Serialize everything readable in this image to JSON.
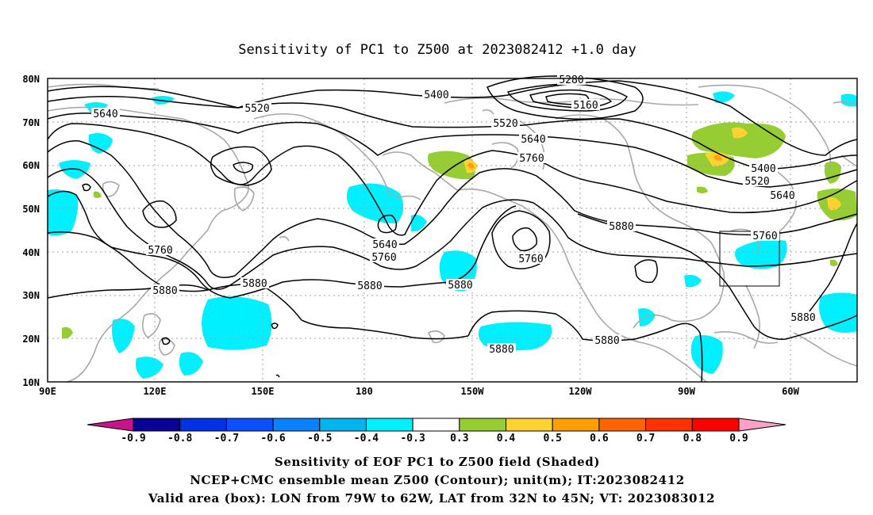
{
  "title": "Sensitivity of PC1 to Z500 at 2023082412 +1.0 day",
  "map": {
    "lat_labels": [
      "80N",
      "70N",
      "60N",
      "50N",
      "40N",
      "30N",
      "20N",
      "10N"
    ],
    "lon_labels": [
      "90E",
      "120E",
      "150E",
      "180",
      "150W",
      "120W",
      "90W",
      "60W"
    ],
    "contour_labels": [
      {
        "text": "5520"
      },
      {
        "text": "5640"
      },
      {
        "text": "5400"
      },
      {
        "text": "5280"
      },
      {
        "text": "5160"
      },
      {
        "text": "5520"
      },
      {
        "text": "5640"
      },
      {
        "text": "5760"
      },
      {
        "text": "5400"
      },
      {
        "text": "5520"
      },
      {
        "text": "5640"
      },
      {
        "text": "5760"
      },
      {
        "text": "5640"
      },
      {
        "text": "5760"
      },
      {
        "text": "5760"
      },
      {
        "text": "5760"
      },
      {
        "text": "5880"
      },
      {
        "text": "5880"
      },
      {
        "text": "5880"
      },
      {
        "text": "5880"
      },
      {
        "text": "5880"
      },
      {
        "text": "5880"
      },
      {
        "text": "5880"
      },
      {
        "text": "5880"
      }
    ]
  },
  "colorbar": {
    "labels": [
      "-0.9",
      "-0.8",
      "-0.7",
      "-0.6",
      "-0.5",
      "-0.4",
      "-0.3",
      "0.3",
      "0.4",
      "0.5",
      "0.6",
      "0.7",
      "0.8",
      "0.9"
    ],
    "colors": [
      "#0a0096",
      "#0032e6",
      "#0a50ff",
      "#0a82ff",
      "#00b4f0",
      "#00f0ff",
      "#ffffff",
      "#96cd32",
      "#ffd232",
      "#ffa000",
      "#ff6400",
      "#ff3200",
      "#ff0000"
    ],
    "left_tip": "#c8148c",
    "right_tip": "#ffa0c8"
  },
  "footer": {
    "line1": "Sensitivity of EOF PC1 to Z500 field (Shaded)",
    "line2": "NCEP+CMC ensemble mean Z500 (Contour); unit(m); IT:2023082412",
    "line3": "Valid area (box): LON from 79W to 62W, LAT from 32N to 45N; VT: 2023083012"
  }
}
